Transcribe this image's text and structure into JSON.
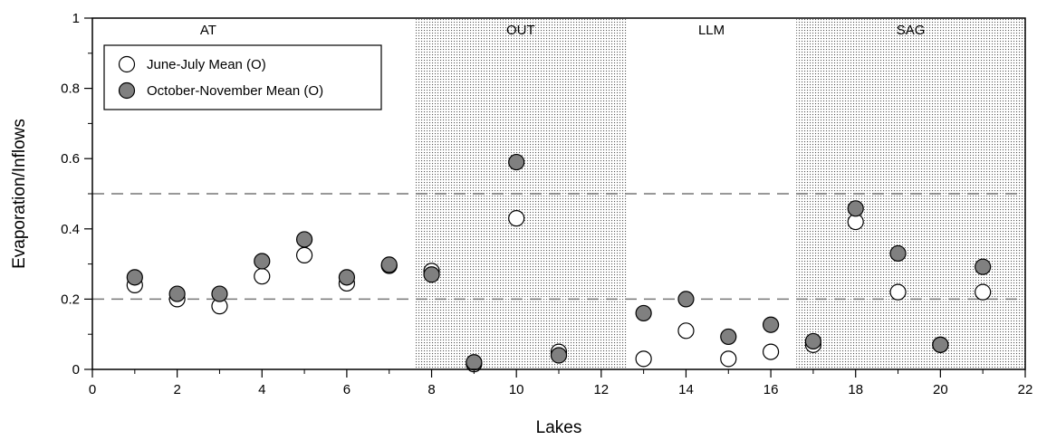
{
  "chart_data": {
    "type": "scatter",
    "xlabel": "Lakes",
    "ylabel": "Evaporation/Inflows",
    "xlim": [
      0,
      22
    ],
    "ylim": [
      0,
      1
    ],
    "xticks": [
      0,
      2,
      4,
      6,
      8,
      10,
      12,
      14,
      16,
      18,
      20,
      22
    ],
    "yticks": [
      0,
      0.2,
      0.4,
      0.6,
      0.8,
      1
    ],
    "ytick_labels": [
      "0",
      "0.2",
      "0.4",
      "0.6",
      "0.8",
      "1"
    ],
    "reference_lines": [
      0.2,
      0.5
    ],
    "regions": [
      {
        "label": "AT",
        "x_range": [
          0,
          7.6
        ],
        "shaded": false
      },
      {
        "label": "OUT",
        "x_range": [
          7.6,
          12.6
        ],
        "shaded": true
      },
      {
        "label": "LLM",
        "x_range": [
          12.6,
          16.6
        ],
        "shaded": false
      },
      {
        "label": "SAG",
        "x_range": [
          16.6,
          22
        ],
        "shaded": true
      }
    ],
    "legend_position": "top-left",
    "series": [
      {
        "name": "June-July Mean (O)",
        "color": "#ffffff",
        "x": [
          1,
          2,
          3,
          4,
          5,
          6,
          7,
          8,
          9,
          10,
          11,
          13,
          14,
          15,
          16,
          17,
          18,
          19,
          20,
          21
        ],
        "y": [
          0.24,
          0.2,
          0.18,
          0.265,
          0.325,
          0.245,
          0.295,
          0.28,
          0.015,
          0.43,
          0.05,
          0.03,
          0.11,
          0.03,
          0.05,
          0.07,
          0.42,
          0.22,
          0.07,
          0.22
        ]
      },
      {
        "name": "October-November Mean (O)",
        "color": "#808080",
        "x": [
          1,
          2,
          3,
          4,
          5,
          6,
          7,
          8,
          9,
          10,
          11,
          13,
          14,
          15,
          16,
          17,
          18,
          19,
          20,
          21
        ],
        "y": [
          0.262,
          0.215,
          0.215,
          0.308,
          0.37,
          0.262,
          0.298,
          0.27,
          0.02,
          0.59,
          0.04,
          0.16,
          0.2,
          0.093,
          0.127,
          0.08,
          0.458,
          0.33,
          0.07,
          0.292
        ]
      }
    ]
  }
}
